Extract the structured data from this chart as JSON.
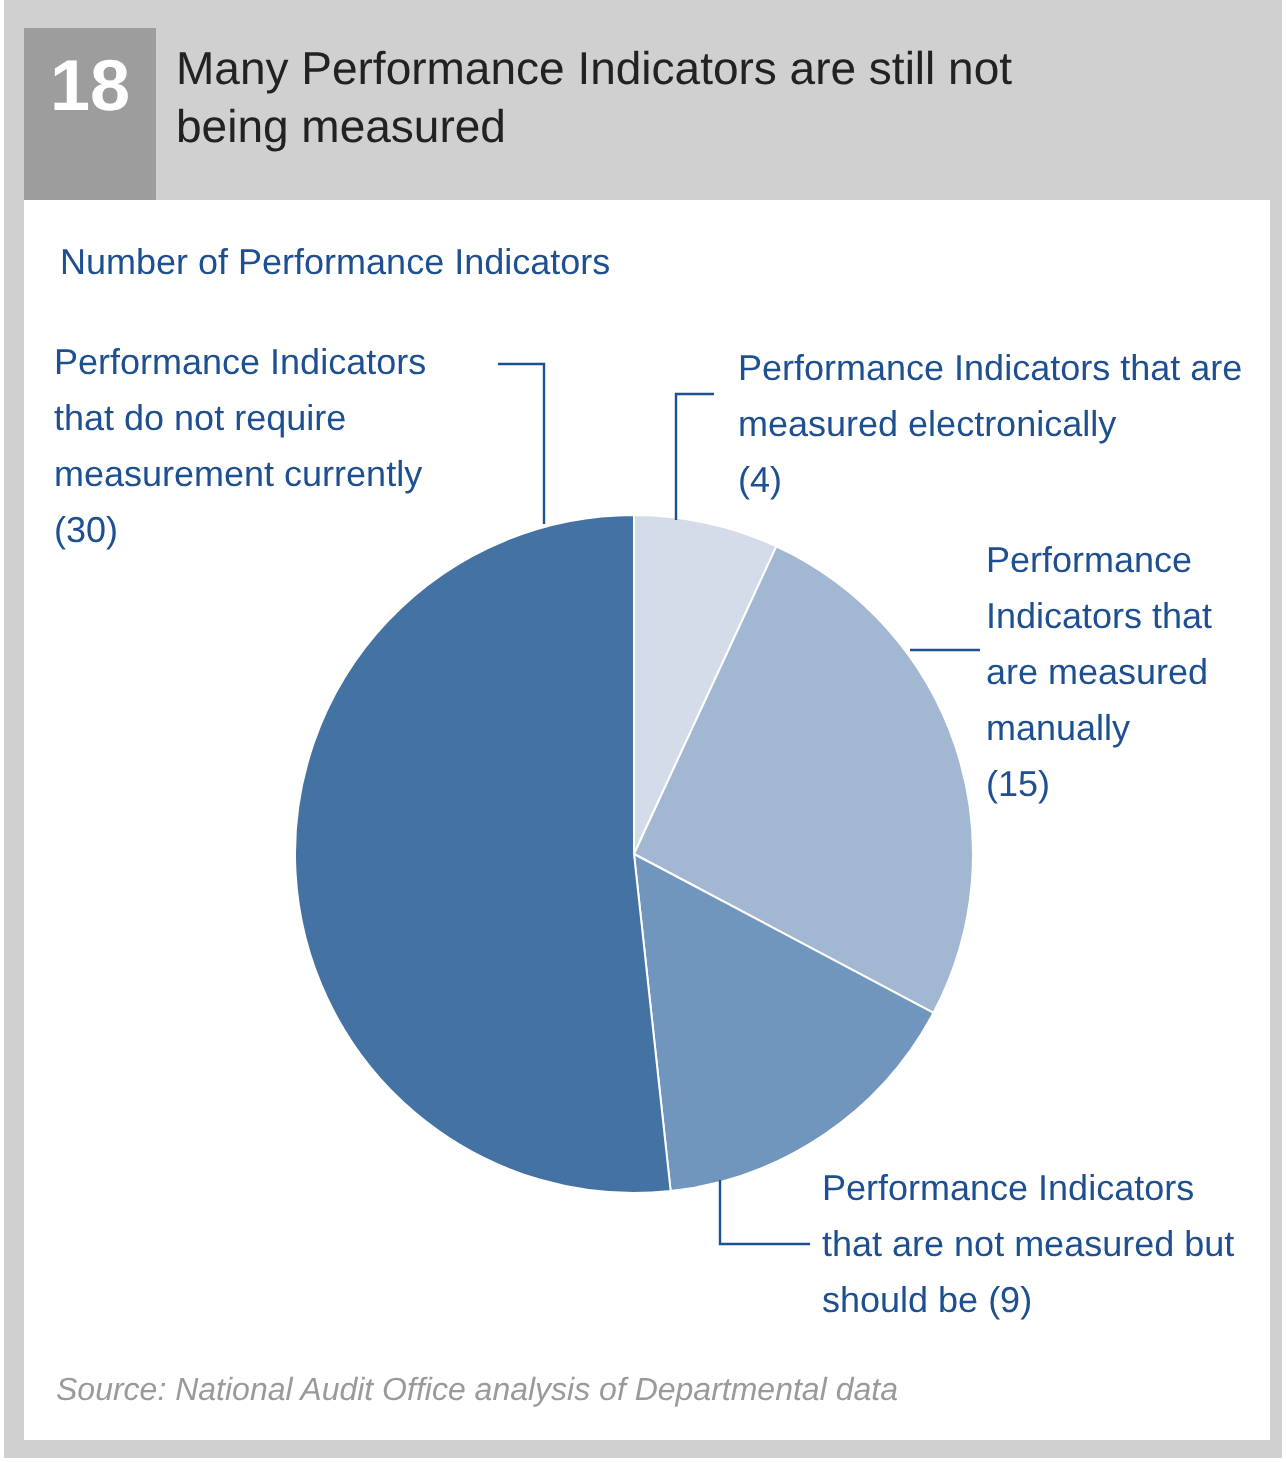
{
  "chart_data": {
    "type": "pie",
    "title": "Many Performance Indicators are still not being measured",
    "subtitle": "Number of Performance Indicators",
    "annotations": [
      "18",
      "Source: National Audit Office analysis of Departmental data"
    ],
    "categories": [
      "Performance Indicators that are measured electronically",
      "Performance Indicators that are measured manually",
      "Performance Indicators that are not measured but should be",
      "Performance Indicators that do not require measurement currently"
    ],
    "values": [
      4,
      15,
      9,
      30
    ],
    "value_labels": [
      "(4)",
      "(15)",
      "(9)",
      "(30)"
    ],
    "colors": [
      "#d3dce8",
      "#a2b8d2",
      "#7096be",
      "#4472a3"
    ],
    "legend": false
  }
}
